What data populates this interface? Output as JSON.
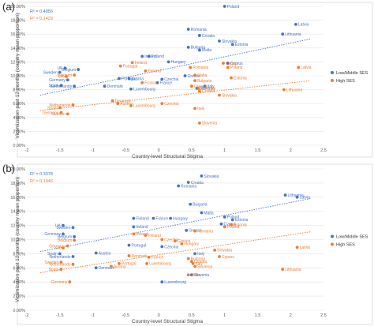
{
  "chart_data": [
    {
      "type": "scatter",
      "panel_label": "(a)",
      "xlabel": "Country-level Structural Stigma",
      "ylabel": "Victimization past 12 months (country mean proportion)",
      "xlim": [
        -2,
        2.5
      ],
      "ylim": [
        0,
        0.2
      ],
      "xticks": [
        "-2",
        "-1.5",
        "-1",
        "-0.5",
        "0",
        "0.5",
        "1",
        "1.5",
        "2",
        "2.5"
      ],
      "yticks": [
        "0.00%",
        "2.00%",
        "4.00%",
        "6.00%",
        "8.00%",
        "10.00%",
        "12.00%",
        "14.00%",
        "16.00%",
        "18.00%",
        "20.00%"
      ],
      "grid": true,
      "legend_position": "right",
      "r2": [
        {
          "text": "R² = 0.4856",
          "color": "#4472C4"
        },
        {
          "text": "R² = 0.1429",
          "color": "#ED7D31"
        }
      ],
      "series": [
        {
          "name": "Low/Middle SES",
          "color": "#4472C4",
          "trend": [
            [
              -1.8,
              0.072
            ],
            [
              2.3,
              0.153
            ]
          ],
          "points": [
            {
              "label": "Poland",
              "x": 1.0,
              "y": 0.2
            },
            {
              "label": "Latvia",
              "x": 2.08,
              "y": 0.174
            },
            {
              "label": "Romania",
              "x": 0.45,
              "y": 0.167
            },
            {
              "label": "Croatia",
              "x": 0.62,
              "y": 0.158
            },
            {
              "label": "Lithuania",
              "x": 1.88,
              "y": 0.16
            },
            {
              "label": "Slovakia",
              "x": 0.92,
              "y": 0.15
            },
            {
              "label": "Estonia",
              "x": 1.12,
              "y": 0.145
            },
            {
              "label": "Bulgaria",
              "x": 0.45,
              "y": 0.141
            },
            {
              "label": "Malta",
              "x": 0.62,
              "y": 0.137
            },
            {
              "label": "Ireland",
              "x": -0.25,
              "y": 0.128
            },
            {
              "label": "Finland",
              "x": -0.15,
              "y": 0.128
            },
            {
              "label": "Hungary",
              "x": 0.15,
              "y": 0.12
            },
            {
              "label": "Cyprus",
              "x": 1.05,
              "y": 0.118
            },
            {
              "label": "UK",
              "x": -1.42,
              "y": 0.111
            },
            {
              "label": "Belgium",
              "x": -1.22,
              "y": 0.109
            },
            {
              "label": "Sweden",
              "x": -1.5,
              "y": 0.105
            },
            {
              "label": "Germany",
              "x": -1.38,
              "y": 0.094
            },
            {
              "label": "Austria",
              "x": -0.45,
              "y": 0.096
            },
            {
              "label": "Czechia",
              "x": 0.05,
              "y": 0.095
            },
            {
              "label": "Greece",
              "x": 0.4,
              "y": 0.1
            },
            {
              "label": "Spain",
              "x": -1.48,
              "y": 0.086
            },
            {
              "label": "Netherlands",
              "x": -1.28,
              "y": 0.085
            },
            {
              "label": "Denmark",
              "x": -0.82,
              "y": 0.085
            },
            {
              "label": "Luxembourg",
              "x": -0.42,
              "y": 0.081
            },
            {
              "label": "Portugal",
              "x": -0.6,
              "y": 0.096
            },
            {
              "label": "France",
              "x": -0.02,
              "y": 0.09
            },
            {
              "label": "Italy",
              "x": 0.7,
              "y": 0.085
            },
            {
              "label": "Slovenia",
              "x": 0.58,
              "y": 0.082
            }
          ]
        },
        {
          "name": "High SES",
          "color": "#ED7D31",
          "trend": [
            [
              -1.8,
              0.05
            ],
            [
              2.3,
              0.093
            ]
          ],
          "points": [
            {
              "label": "Portugal",
              "x": -0.58,
              "y": 0.114
            },
            {
              "label": "Ireland",
              "x": -0.4,
              "y": 0.119
            },
            {
              "label": "Finland",
              "x": -0.2,
              "y": 0.107
            },
            {
              "label": "Romania",
              "x": 0.48,
              "y": 0.112
            },
            {
              "label": "Cyprus",
              "x": 0.98,
              "y": 0.118
            },
            {
              "label": "Poland",
              "x": 1.05,
              "y": 0.112
            },
            {
              "label": "Latvia",
              "x": 2.12,
              "y": 0.112
            },
            {
              "label": "Malta",
              "x": 0.55,
              "y": 0.101
            },
            {
              "label": "Estonia",
              "x": 1.1,
              "y": 0.097
            },
            {
              "label": "Bulgaria",
              "x": 0.55,
              "y": 0.093
            },
            {
              "label": "Lithuania",
              "x": 1.9,
              "y": 0.08
            },
            {
              "label": "Belgium",
              "x": -1.28,
              "y": 0.101
            },
            {
              "label": "UK",
              "x": -1.4,
              "y": 0.099
            },
            {
              "label": "Greece",
              "x": 0.5,
              "y": 0.085
            },
            {
              "label": "Hungary",
              "x": 0.6,
              "y": 0.082
            },
            {
              "label": "Croatia",
              "x": 0.62,
              "y": 0.078
            },
            {
              "label": "Slovakia",
              "x": 0.92,
              "y": 0.072
            },
            {
              "label": "Denmark",
              "x": -0.7,
              "y": 0.064
            },
            {
              "label": "Austria",
              "x": -0.62,
              "y": 0.06
            },
            {
              "label": "Luxembourg",
              "x": -0.42,
              "y": 0.057
            },
            {
              "label": "Czechia",
              "x": 0.05,
              "y": 0.06
            },
            {
              "label": "Italy",
              "x": 0.55,
              "y": 0.053
            },
            {
              "label": "Slovenia",
              "x": 0.62,
              "y": 0.032
            },
            {
              "label": "Spain",
              "x": -1.5,
              "y": 0.054
            },
            {
              "label": "Netherlands",
              "x": -1.3,
              "y": 0.058
            },
            {
              "label": "Germany",
              "x": -1.48,
              "y": 0.047
            },
            {
              "label": "Sweden",
              "x": -1.38,
              "y": 0.045
            },
            {
              "label": "France",
              "x": -0.25,
              "y": 0.09
            }
          ]
        }
      ]
    },
    {
      "type": "scatter",
      "panel_label": "(b)",
      "xlabel": "Country-level Structural Stigma",
      "ylabel": "Victimization past 12 months (country mean proportion)",
      "xlim": [
        -2,
        2.5
      ],
      "ylim": [
        0,
        0.2
      ],
      "xticks": [
        "-2",
        "-1.5",
        "-1",
        "-0.5",
        "0",
        "0.5",
        "1",
        "1.5",
        "2",
        "2.5"
      ],
      "yticks": [
        "0.00%",
        "2.00%",
        "4.00%",
        "6.00%",
        "8.00%",
        "10.00%",
        "12.00%",
        "14.00%",
        "16.00%",
        "18.00%",
        "20.00%"
      ],
      "grid": true,
      "legend_position": "right",
      "r2": [
        {
          "text": "R² = 0.3078",
          "color": "#4472C4"
        },
        {
          "text": "R² = 0.1946",
          "color": "#ED7D31"
        }
      ],
      "series": [
        {
          "name": "Low/Middle SES",
          "color": "#4472C4",
          "trend": [
            [
              -1.8,
              0.083
            ],
            [
              2.3,
              0.158
            ]
          ],
          "points": [
            {
              "label": "Slovakia",
              "x": 0.65,
              "y": 0.19
            },
            {
              "label": "Croatia",
              "x": 0.45,
              "y": 0.181
            },
            {
              "label": "Romania",
              "x": 0.3,
              "y": 0.176
            },
            {
              "label": "Lithuania",
              "x": 1.92,
              "y": 0.163
            },
            {
              "label": "Latvia",
              "x": 2.1,
              "y": 0.16
            },
            {
              "label": "Bulgaria",
              "x": 0.48,
              "y": 0.15
            },
            {
              "label": "Finland",
              "x": -0.38,
              "y": 0.13
            },
            {
              "label": "France",
              "x": -0.08,
              "y": 0.13
            },
            {
              "label": "Hungary",
              "x": 0.18,
              "y": 0.13
            },
            {
              "label": "Malta",
              "x": 0.65,
              "y": 0.138
            },
            {
              "label": "Poland",
              "x": 1.0,
              "y": 0.132
            },
            {
              "label": "Estonia",
              "x": 1.12,
              "y": 0.128
            },
            {
              "label": "Ireland",
              "x": -0.38,
              "y": 0.118
            },
            {
              "label": "Greece",
              "x": 0.42,
              "y": 0.113
            },
            {
              "label": "Cyprus",
              "x": 0.95,
              "y": 0.122
            },
            {
              "label": "UK",
              "x": -1.45,
              "y": 0.12
            },
            {
              "label": "Sweden",
              "x": -1.3,
              "y": 0.117
            },
            {
              "label": "Germany",
              "x": -1.45,
              "y": 0.108
            },
            {
              "label": "Belgium",
              "x": -1.28,
              "y": 0.104
            },
            {
              "label": "Czechia",
              "x": 0.05,
              "y": 0.09
            },
            {
              "label": "Portugal",
              "x": -0.45,
              "y": 0.092
            },
            {
              "label": "Italy",
              "x": 0.55,
              "y": 0.08
            },
            {
              "label": "Austria",
              "x": -0.95,
              "y": 0.081
            },
            {
              "label": "Spain",
              "x": -1.5,
              "y": 0.08
            },
            {
              "label": "Netherlands",
              "x": -1.3,
              "y": 0.076
            },
            {
              "label": "Denmark",
              "x": -0.95,
              "y": 0.06
            },
            {
              "label": "Luxembourg",
              "x": 0.05,
              "y": 0.04
            },
            {
              "label": "Slovenia",
              "x": 0.5,
              "y": 0.05
            }
          ]
        },
        {
          "name": "High SES",
          "color": "#ED7D31",
          "trend": [
            [
              -1.8,
              0.053
            ],
            [
              2.3,
              0.111
            ]
          ],
          "points": [
            {
              "label": "Estonia",
              "x": 1.1,
              "y": 0.121
            },
            {
              "label": "Poland",
              "x": 1.0,
              "y": 0.118
            },
            {
              "label": "Romania",
              "x": 0.55,
              "y": 0.112
            },
            {
              "label": "Latvia",
              "x": 2.1,
              "y": 0.089
            },
            {
              "label": "Ireland",
              "x": -0.38,
              "y": 0.108
            },
            {
              "label": "Finland",
              "x": -0.2,
              "y": 0.106
            },
            {
              "label": "Czechia",
              "x": 0.05,
              "y": 0.1
            },
            {
              "label": "Greece",
              "x": 0.25,
              "y": 0.098
            },
            {
              "label": "Hungary",
              "x": 0.35,
              "y": 0.094
            },
            {
              "label": "Belgium",
              "x": -1.28,
              "y": 0.099
            },
            {
              "label": "Germany",
              "x": -1.38,
              "y": 0.091
            },
            {
              "label": "UK",
              "x": -1.45,
              "y": 0.088
            },
            {
              "label": "Slovakia",
              "x": 0.85,
              "y": 0.085
            },
            {
              "label": "Cyprus",
              "x": 0.92,
              "y": 0.076
            },
            {
              "label": "Denmark",
              "x": -0.45,
              "y": 0.077
            },
            {
              "label": "France",
              "x": -0.15,
              "y": 0.075
            },
            {
              "label": "Bulgaria",
              "x": 0.45,
              "y": 0.073
            },
            {
              "label": "Croatia",
              "x": 0.5,
              "y": 0.069
            },
            {
              "label": "Sweden",
              "x": -1.48,
              "y": 0.068
            },
            {
              "label": "Netherlands",
              "x": -1.3,
              "y": 0.065
            },
            {
              "label": "Austria",
              "x": -0.72,
              "y": 0.062
            },
            {
              "label": "Portugal",
              "x": -0.6,
              "y": 0.066
            },
            {
              "label": "Luxembourg",
              "x": -0.18,
              "y": 0.066
            },
            {
              "label": "Italy",
              "x": 0.52,
              "y": 0.066
            },
            {
              "label": "Spain",
              "x": -1.48,
              "y": 0.058
            },
            {
              "label": "Slovenia",
              "x": 0.55,
              "y": 0.062
            },
            {
              "label": "Lithuania",
              "x": 1.88,
              "y": 0.058
            },
            {
              "label": "Malta",
              "x": 0.45,
              "y": 0.05
            },
            {
              "label": "Germany",
              "x": -1.35,
              "y": 0.04
            }
          ]
        }
      ]
    }
  ]
}
